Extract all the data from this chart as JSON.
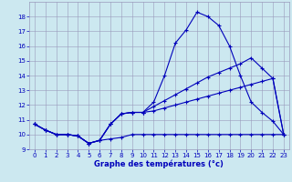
{
  "xlabel": "Graphe des températures (°c)",
  "hours": [
    0,
    1,
    2,
    3,
    4,
    5,
    6,
    7,
    8,
    9,
    10,
    11,
    12,
    13,
    14,
    15,
    16,
    17,
    18,
    19,
    20,
    21,
    22,
    23
  ],
  "line_main": [
    10.7,
    10.3,
    10.0,
    10.0,
    9.9,
    9.4,
    9.6,
    10.7,
    11.4,
    11.5,
    11.5,
    12.2,
    14.0,
    16.2,
    17.1,
    18.3,
    18.0,
    17.4,
    16.0,
    14.0,
    12.2,
    11.5,
    10.9,
    10.0
  ],
  "line_min": [
    10.7,
    10.3,
    10.0,
    10.0,
    9.9,
    9.4,
    9.6,
    9.7,
    9.8,
    10.0,
    10.0,
    10.0,
    10.0,
    10.0,
    10.0,
    10.0,
    10.0,
    10.0,
    10.0,
    10.0,
    10.0,
    10.0,
    10.0,
    10.0
  ],
  "line_trend1": [
    10.7,
    10.3,
    10.0,
    10.0,
    9.9,
    9.4,
    9.6,
    10.7,
    11.4,
    11.5,
    11.5,
    11.9,
    12.3,
    12.7,
    13.1,
    13.5,
    13.9,
    14.2,
    14.5,
    14.8,
    15.2,
    14.5,
    13.8,
    10.0
  ],
  "line_trend2": [
    10.7,
    10.3,
    10.0,
    10.0,
    9.9,
    9.4,
    9.6,
    10.7,
    11.4,
    11.5,
    11.5,
    11.6,
    11.8,
    12.0,
    12.2,
    12.4,
    12.6,
    12.8,
    13.0,
    13.2,
    13.4,
    13.6,
    13.8,
    10.0
  ],
  "line_color": "#0000bb",
  "bg_color": "#cce8f0",
  "grid_color": "#9999bb",
  "ylim_min": 9,
  "ylim_max": 19,
  "yticks": [
    9,
    10,
    11,
    12,
    13,
    14,
    15,
    16,
    17,
    18
  ],
  "xticks": [
    0,
    1,
    2,
    3,
    4,
    5,
    6,
    7,
    8,
    9,
    10,
    11,
    12,
    13,
    14,
    15,
    16,
    17,
    18,
    19,
    20,
    21,
    22,
    23
  ]
}
